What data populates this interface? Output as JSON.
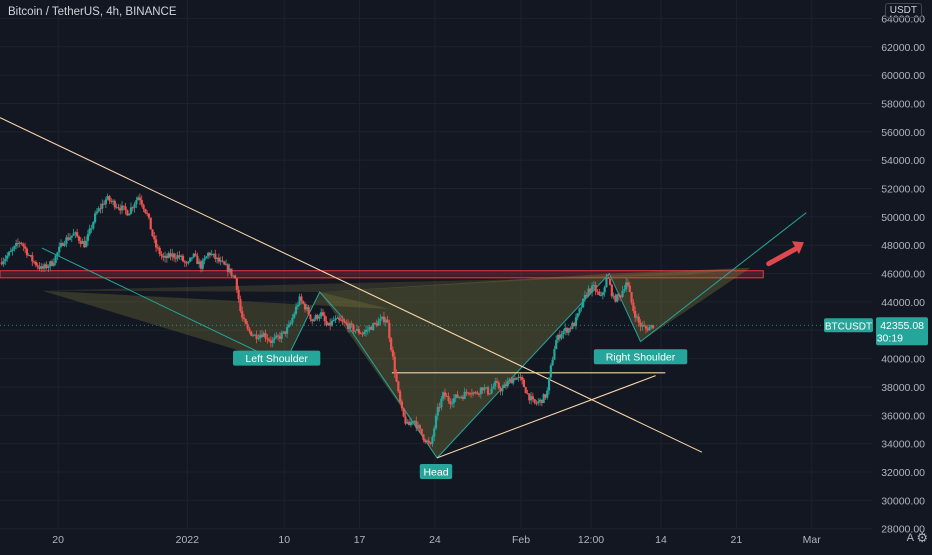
{
  "header": {
    "symbol_title": "Bitcoin / TetherUS, 4h, BINANCE",
    "currency": "USDT"
  },
  "footer": {
    "auto_label": "A",
    "settings_icon": "gear-icon"
  },
  "colors": {
    "background": "#131722",
    "bull": "#26a69a",
    "bear": "#ef5350",
    "axis_text": "#b2b5be",
    "resistance_zone": "#f23645",
    "pattern_fill": "#8d8a3f",
    "pattern_outline": "#26a69a",
    "trendline": "#f5d5a8",
    "arrow": "#e0484f",
    "price_tag": "#26a69a"
  },
  "chart_data": {
    "type": "candlestick",
    "symbol": "BTCUSDT",
    "timeframe": "4h",
    "exchange": "BINANCE",
    "ylim": [
      26500,
      65300
    ],
    "y_ticks": [
      28000,
      30000,
      32000,
      34000,
      36000,
      38000,
      40000,
      42000,
      44000,
      46000,
      48000,
      50000,
      52000,
      54000,
      56000,
      58000,
      60000,
      62000,
      64000
    ],
    "y_tick_labels": [
      "28000.00",
      "30000.00",
      "32000.00",
      "34000.00",
      "36000.00",
      "38000.00",
      "40000.00",
      "42000.00",
      "44000.00",
      "46000.00",
      "48000.00",
      "50000.00",
      "52000.00",
      "54000.00",
      "56000.00",
      "58000.00",
      "60000.00",
      "62000.00",
      "64000.00"
    ],
    "x_ticks": [
      {
        "day": 0,
        "label": "20"
      },
      {
        "day": 12,
        "label": "2022"
      },
      {
        "day": 21,
        "label": "10"
      },
      {
        "day": 28,
        "label": "17"
      },
      {
        "day": 35,
        "label": "24"
      },
      {
        "day": 43,
        "label": "Feb"
      },
      {
        "day": 49.5,
        "label": "12:00"
      },
      {
        "day": 56,
        "label": "14"
      },
      {
        "day": 63,
        "label": "21"
      },
      {
        "day": 70,
        "label": "Mar"
      }
    ],
    "x_range_days": [
      -5.4,
      75.6
    ],
    "price_path": [
      [
        -5.4,
        46800
      ],
      [
        -4.5,
        47400
      ],
      [
        -3.5,
        48300
      ],
      [
        -2.5,
        47000
      ],
      [
        -1.5,
        46300
      ],
      [
        -0.5,
        46800
      ],
      [
        0.5,
        48300
      ],
      [
        1.5,
        48800
      ],
      [
        2.5,
        48000
      ],
      [
        3.5,
        50200
      ],
      [
        4.5,
        51300
      ],
      [
        5.5,
        50800
      ],
      [
        6.5,
        50300
      ],
      [
        7.5,
        51500
      ],
      [
        8.3,
        50100
      ],
      [
        9,
        48000
      ],
      [
        9.8,
        47000
      ],
      [
        10.5,
        47300
      ],
      [
        11.3,
        47200
      ],
      [
        12,
        46500
      ],
      [
        12.5,
        47300
      ],
      [
        13.3,
        46500
      ],
      [
        14,
        47500
      ],
      [
        15,
        46800
      ],
      [
        15.8,
        46300
      ],
      [
        16.5,
        45600
      ],
      [
        17,
        43000
      ],
      [
        17.6,
        42000
      ],
      [
        18.3,
        41600
      ],
      [
        19,
        41800
      ],
      [
        19.8,
        41200
      ],
      [
        20.5,
        41500
      ],
      [
        21,
        41800
      ],
      [
        21.5,
        42300
      ],
      [
        22.4,
        44200
      ],
      [
        23,
        43600
      ],
      [
        23.6,
        42700
      ],
      [
        24.4,
        43200
      ],
      [
        25,
        42200
      ],
      [
        25.6,
        42700
      ],
      [
        26.3,
        42600
      ],
      [
        27,
        42300
      ],
      [
        27.6,
        42000
      ],
      [
        28.3,
        41800
      ],
      [
        29,
        42200
      ],
      [
        29.8,
        42600
      ],
      [
        30.5,
        42900
      ],
      [
        31,
        40500
      ],
      [
        31.3,
        39000
      ],
      [
        31.6,
        37500
      ],
      [
        32,
        36000
      ],
      [
        32.5,
        35200
      ],
      [
        33,
        35800
      ],
      [
        33.5,
        35000
      ],
      [
        34,
        34400
      ],
      [
        34.6,
        33800
      ],
      [
        35.2,
        36200
      ],
      [
        35.8,
        37500
      ],
      [
        36.4,
        37000
      ],
      [
        37,
        37300
      ],
      [
        37.6,
        37400
      ],
      [
        38.2,
        37800
      ],
      [
        38.8,
        37500
      ],
      [
        39.4,
        38000
      ],
      [
        40,
        37600
      ],
      [
        40.6,
        38200
      ],
      [
        41.2,
        37800
      ],
      [
        41.8,
        38300
      ],
      [
        42.4,
        38700
      ],
      [
        43,
        38500
      ],
      [
        43.6,
        37500
      ],
      [
        44.2,
        36800
      ],
      [
        44.8,
        37000
      ],
      [
        45.4,
        37500
      ],
      [
        45.8,
        39500
      ],
      [
        46.2,
        41200
      ],
      [
        46.8,
        41900
      ],
      [
        47.4,
        42100
      ],
      [
        48,
        42500
      ],
      [
        48.6,
        43700
      ],
      [
        49.2,
        44800
      ],
      [
        49.8,
        45000
      ],
      [
        50.4,
        44200
      ],
      [
        51,
        45800
      ],
      [
        51.6,
        44200
      ],
      [
        52.2,
        44400
      ],
      [
        52.8,
        45500
      ],
      [
        53.4,
        43500
      ],
      [
        54,
        42400
      ],
      [
        54.6,
        42100
      ],
      [
        55.3,
        42355
      ]
    ],
    "resistance_zone": {
      "from_day": -5.4,
      "to_day": 65.5,
      "y_top": 46200,
      "y_bottom": 45700
    },
    "pattern_labels": [
      {
        "text": "Left Shoulder",
        "day": 20.3,
        "price": 40000
      },
      {
        "text": "Head",
        "day": 35.1,
        "price": 32000
      },
      {
        "text": "Right Shoulder",
        "day": 54.1,
        "price": 40100
      }
    ],
    "last_price": {
      "symbol": "BTCUSDT",
      "value": 42355.08,
      "label": "42355.08",
      "countdown": "30:19"
    }
  }
}
